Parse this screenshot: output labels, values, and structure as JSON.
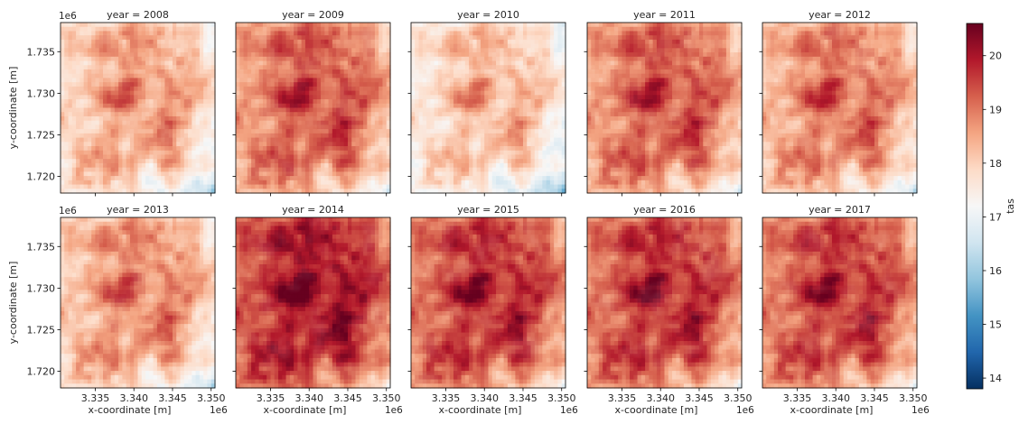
{
  "figure": {
    "type": "heatmap-facets",
    "x_label": "x-coordinate [m]",
    "y_label": "y-coordinate [m]",
    "x_ticks": [
      "3.335",
      "3.340",
      "3.345",
      "3.350"
    ],
    "y_ticks": [
      "1.735",
      "1.730",
      "1.725",
      "1.720"
    ],
    "offset_label": "1e6"
  },
  "colorbar": {
    "label": "tas",
    "ticks": [
      "20",
      "19",
      "18",
      "17",
      "16",
      "15",
      "14"
    ],
    "cmap": "RdBu_r",
    "min_color": "#053061",
    "mid_color": "#f7f7f7",
    "max_color": "#67001f"
  },
  "chart_data": {
    "type": "heatmap",
    "facet_by": "year",
    "color_variable": "tas",
    "vmin": 13.8,
    "vmax": 20.6,
    "x_range_1e6": [
      3.3305,
      3.3505
    ],
    "y_range_1e6": [
      1.718,
      1.7385
    ],
    "panels": [
      {
        "title": "year = 2008",
        "year": 2008,
        "mean_tas": 17.9
      },
      {
        "title": "year = 2009",
        "year": 2009,
        "mean_tas": 18.6
      },
      {
        "title": "year = 2010",
        "year": 2010,
        "mean_tas": 17.6
      },
      {
        "title": "year = 2011",
        "year": 2011,
        "mean_tas": 18.6
      },
      {
        "title": "year = 2012",
        "year": 2012,
        "mean_tas": 18.3
      },
      {
        "title": "year = 2013",
        "year": 2013,
        "mean_tas": 18.1
      },
      {
        "title": "year = 2014",
        "year": 2014,
        "mean_tas": 19.3
      },
      {
        "title": "year = 2015",
        "year": 2015,
        "mean_tas": 19.0
      },
      {
        "title": "year = 2016",
        "year": 2016,
        "mean_tas": 19.0
      },
      {
        "title": "year = 2017",
        "year": 2017,
        "mean_tas": 18.9
      }
    ]
  }
}
